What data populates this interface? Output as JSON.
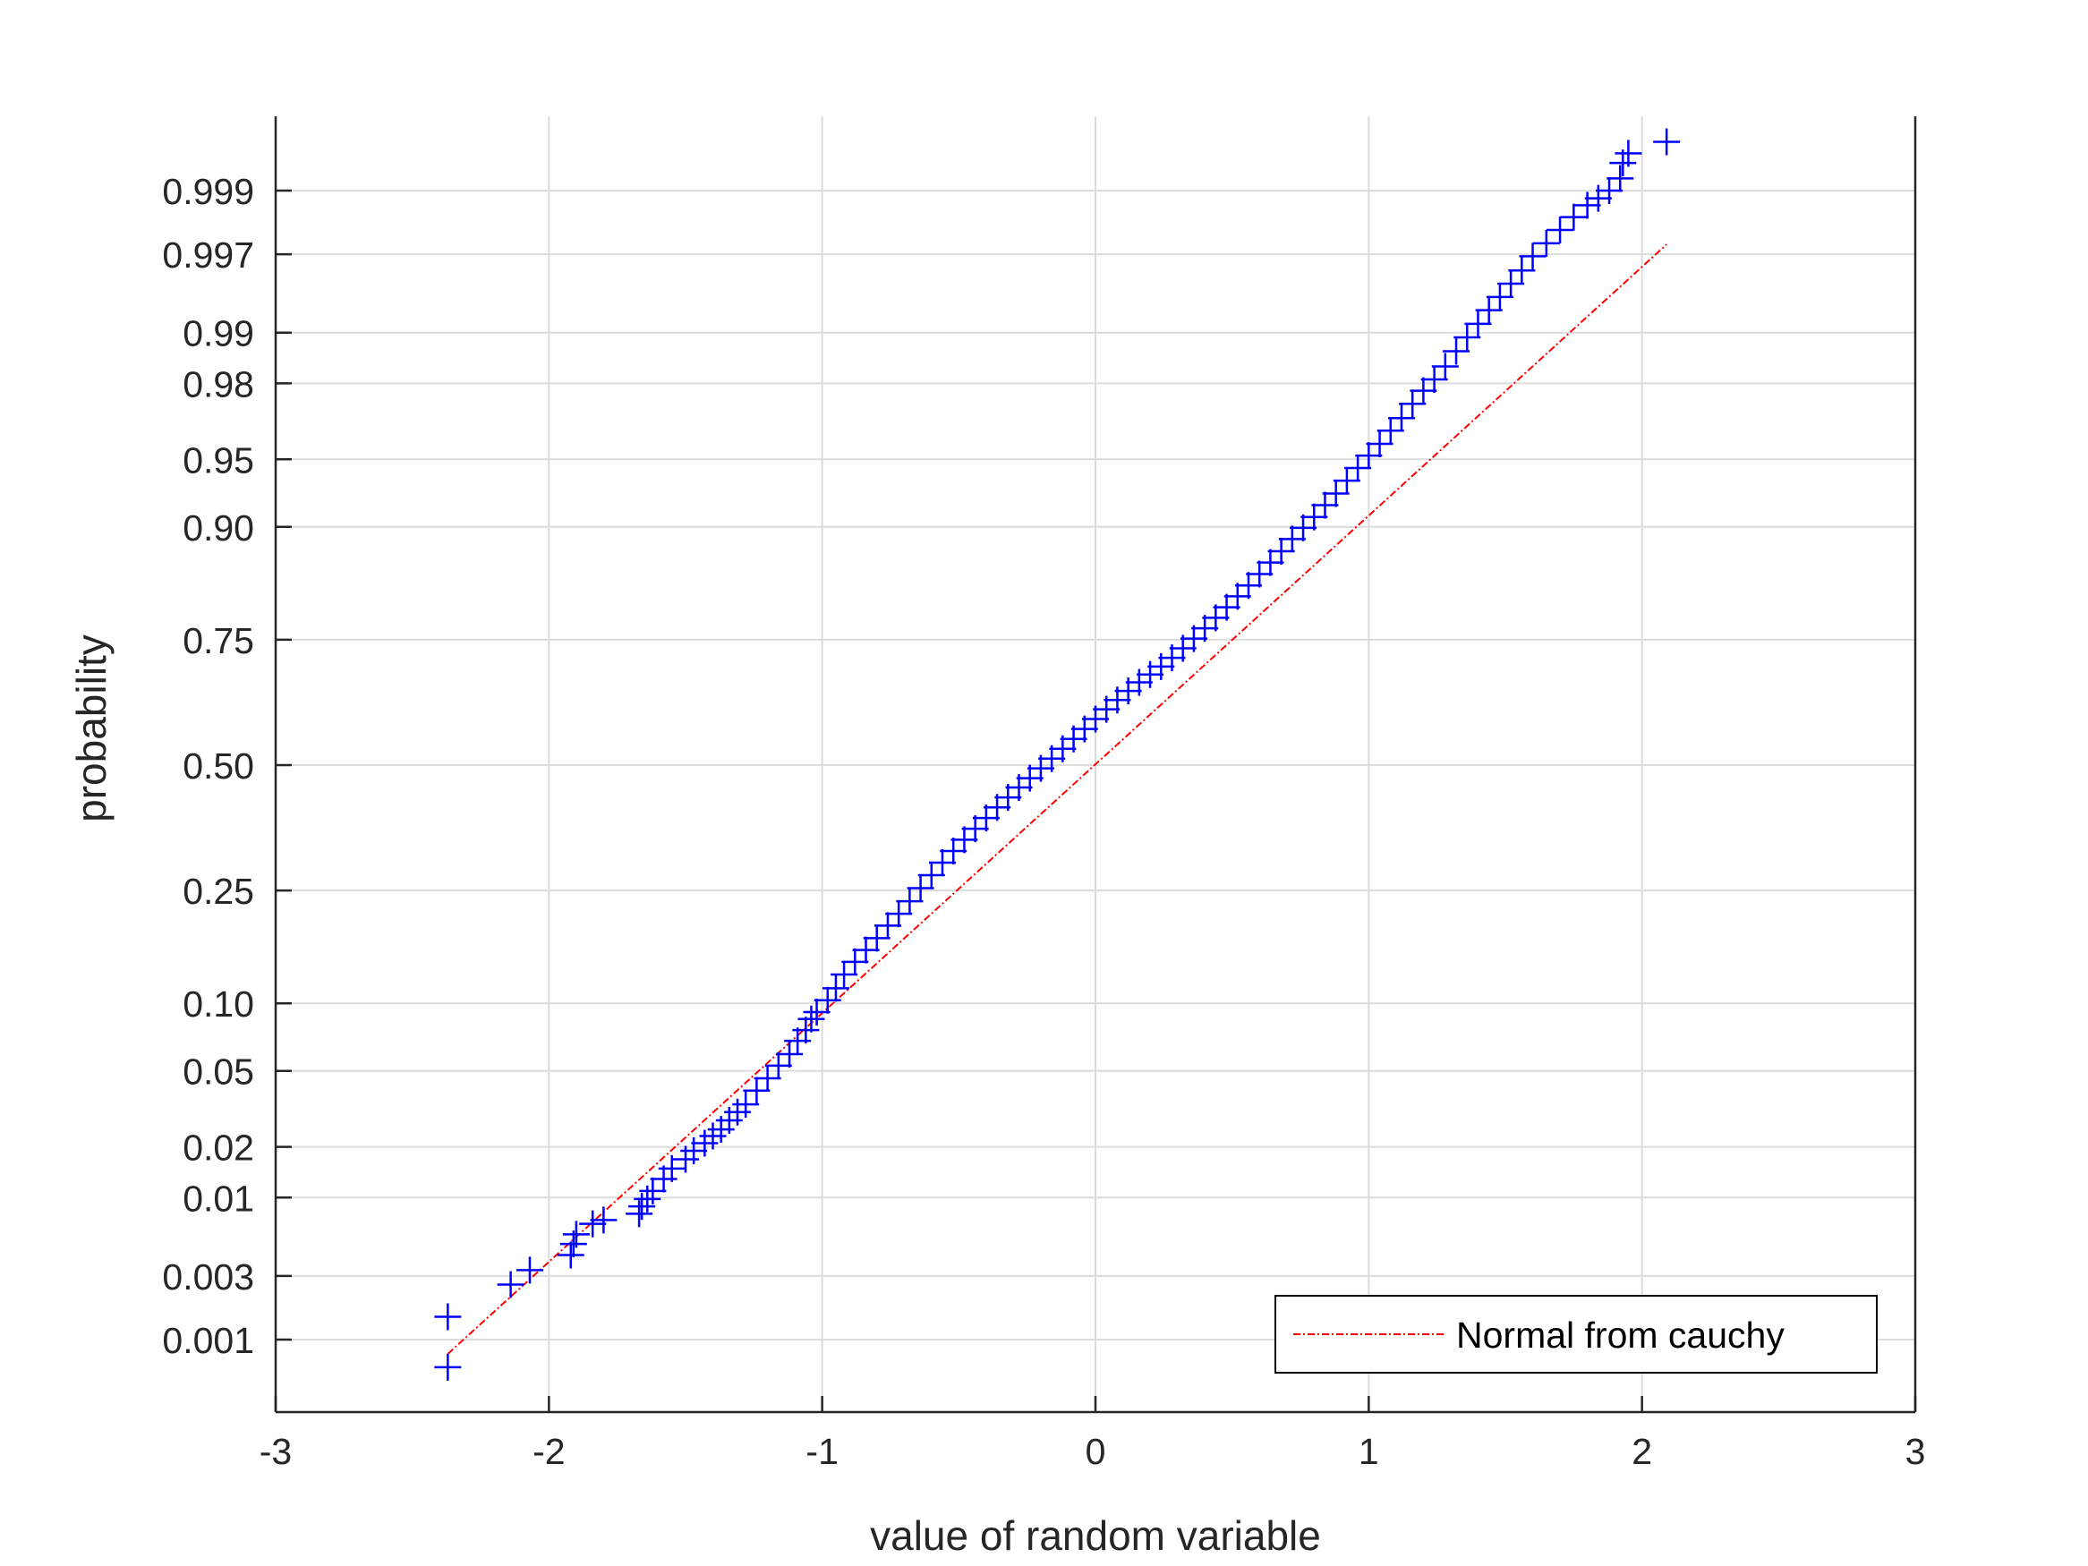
{
  "chart_data": {
    "type": "scatter",
    "title": "",
    "xlabel": "value of random variable",
    "ylabel": "probability",
    "xlim": [
      -3,
      3
    ],
    "ylim_probability": [
      0.0003,
      0.9996
    ],
    "y_scale": "normal-probability",
    "grid": true,
    "legend_position": "bottom-right",
    "x_ticks": [
      -3,
      -2,
      -1,
      0,
      1,
      2,
      3
    ],
    "x_tick_labels": [
      "-3",
      "-2",
      "-1",
      "0",
      "1",
      "2",
      "3"
    ],
    "y_ticks": [
      0.001,
      0.003,
      0.01,
      0.02,
      0.05,
      0.1,
      0.25,
      0.5,
      0.75,
      0.9,
      0.95,
      0.98,
      0.99,
      0.997,
      0.999
    ],
    "y_tick_labels": [
      "0.001",
      "0.003",
      "0.01",
      "0.02",
      "0.05",
      "0.10",
      "0.25",
      "0.50",
      "0.75",
      "0.90",
      "0.95",
      "0.98",
      "0.99",
      "0.997",
      "0.999"
    ],
    "series": [
      {
        "name": "",
        "kind": "markers",
        "marker": "+",
        "color": "#0000ff",
        "x": [
          -2.37,
          -2.37,
          -2.14,
          -2.07,
          -1.92,
          -1.91,
          -1.9,
          -1.84,
          -1.8,
          -1.67,
          -1.66,
          -1.64,
          -1.62,
          -1.58,
          -1.55,
          -1.5,
          -1.47,
          -1.43,
          -1.4,
          -1.37,
          -1.34,
          -1.31,
          -1.28,
          -1.24,
          -1.2,
          -1.16,
          -1.12,
          -1.09,
          -1.06,
          -1.04,
          -1.02,
          -0.98,
          -0.95,
          -0.92,
          -0.88,
          -0.84,
          -0.8,
          -0.76,
          -0.72,
          -0.68,
          -0.64,
          -0.6,
          -0.56,
          -0.52,
          -0.48,
          -0.44,
          -0.4,
          -0.36,
          -0.32,
          -0.28,
          -0.24,
          -0.2,
          -0.16,
          -0.12,
          -0.08,
          -0.04,
          0.0,
          0.04,
          0.08,
          0.12,
          0.16,
          0.2,
          0.24,
          0.28,
          0.32,
          0.36,
          0.4,
          0.44,
          0.48,
          0.52,
          0.56,
          0.6,
          0.64,
          0.68,
          0.72,
          0.76,
          0.8,
          0.84,
          0.88,
          0.92,
          0.96,
          1.0,
          1.04,
          1.08,
          1.12,
          1.16,
          1.2,
          1.24,
          1.28,
          1.32,
          1.36,
          1.4,
          1.44,
          1.48,
          1.52,
          1.56,
          1.6,
          1.65,
          1.7,
          1.75,
          1.8,
          1.84,
          1.88,
          1.92,
          1.93,
          1.95,
          2.09
        ],
        "y": [
          0.0006,
          0.0015,
          0.0026,
          0.0033,
          0.0042,
          0.005,
          0.0058,
          0.0068,
          0.0072,
          0.0079,
          0.0088,
          0.0098,
          0.011,
          0.013,
          0.015,
          0.017,
          0.019,
          0.021,
          0.023,
          0.025,
          0.028,
          0.031,
          0.034,
          0.04,
          0.046,
          0.053,
          0.06,
          0.069,
          0.077,
          0.086,
          0.092,
          0.103,
          0.115,
          0.13,
          0.145,
          0.16,
          0.176,
          0.194,
          0.212,
          0.232,
          0.254,
          0.277,
          0.3,
          0.322,
          0.344,
          0.366,
          0.388,
          0.41,
          0.431,
          0.452,
          0.472,
          0.493,
          0.514,
          0.535,
          0.556,
          0.577,
          0.598,
          0.618,
          0.637,
          0.655,
          0.672,
          0.687,
          0.702,
          0.718,
          0.735,
          0.752,
          0.769,
          0.786,
          0.802,
          0.818,
          0.833,
          0.848,
          0.862,
          0.875,
          0.888,
          0.899,
          0.909,
          0.919,
          0.928,
          0.937,
          0.945,
          0.952,
          0.958,
          0.964,
          0.969,
          0.974,
          0.978,
          0.981,
          0.984,
          0.987,
          0.9893,
          0.9912,
          0.9928,
          0.9941,
          0.9952,
          0.9961,
          0.9969,
          0.9975,
          0.998,
          0.9984,
          0.9987,
          0.99885,
          0.999,
          0.9992,
          0.9994,
          0.9995,
          0.9996
        ]
      },
      {
        "name": "Normal from cauchy",
        "kind": "line",
        "line_style": "dash-dot",
        "color": "#ff0000",
        "x": [
          -2.37,
          2.09
        ],
        "y": [
          0.00077,
          0.99745
        ]
      }
    ]
  }
}
